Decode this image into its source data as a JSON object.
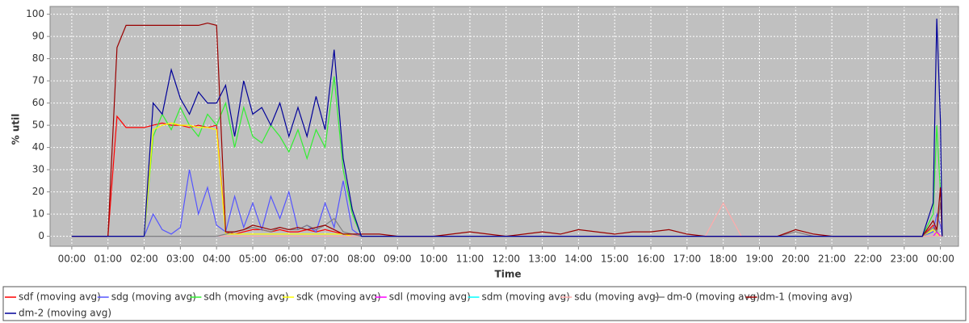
{
  "chart_data": {
    "type": "line",
    "x_label": "Time",
    "y_label": "% util",
    "x": [
      0,
      0.25,
      0.5,
      0.75,
      1,
      1.25,
      1.5,
      1.75,
      2,
      2.25,
      2.5,
      2.75,
      3,
      3.25,
      3.5,
      3.75,
      4,
      4.25,
      4.5,
      4.75,
      5,
      5.25,
      5.5,
      5.75,
      6,
      6.25,
      6.5,
      6.75,
      7,
      7.25,
      7.5,
      7.75,
      8,
      8.5,
      9,
      9.5,
      10,
      10.5,
      11,
      11.5,
      12,
      12.5,
      13,
      13.5,
      14,
      14.5,
      15,
      15.5,
      16,
      16.5,
      17,
      17.5,
      18,
      18.5,
      19,
      19.5,
      20,
      20.5,
      21,
      21.5,
      22,
      22.5,
      23,
      23.5,
      23.8,
      23.9,
      24,
      24.05
    ],
    "xlim": [
      -0.6,
      24.5
    ],
    "xticks": [
      {
        "value": 0,
        "label": "00:00"
      },
      {
        "value": 1,
        "label": "01:00"
      },
      {
        "value": 2,
        "label": "02:00"
      },
      {
        "value": 3,
        "label": "03:00"
      },
      {
        "value": 4,
        "label": "04:00"
      },
      {
        "value": 5,
        "label": "05:00"
      },
      {
        "value": 6,
        "label": "06:00"
      },
      {
        "value": 7,
        "label": "07:00"
      },
      {
        "value": 8,
        "label": "08:00"
      },
      {
        "value": 9,
        "label": "09:00"
      },
      {
        "value": 10,
        "label": "10:00"
      },
      {
        "value": 11,
        "label": "11:00"
      },
      {
        "value": 12,
        "label": "12:00"
      },
      {
        "value": 13,
        "label": "13:00"
      },
      {
        "value": 14,
        "label": "14:00"
      },
      {
        "value": 15,
        "label": "15:00"
      },
      {
        "value": 16,
        "label": "16:00"
      },
      {
        "value": 17,
        "label": "17:00"
      },
      {
        "value": 18,
        "label": "18:00"
      },
      {
        "value": 19,
        "label": "19:00"
      },
      {
        "value": 20,
        "label": "20:00"
      },
      {
        "value": 21,
        "label": "21:00"
      },
      {
        "value": 22,
        "label": "22:00"
      },
      {
        "value": 23,
        "label": "23:00"
      },
      {
        "value": 24,
        "label": "00:00"
      }
    ],
    "ylim": [
      -4.5,
      103.5
    ],
    "yticks": [
      0,
      10,
      20,
      30,
      40,
      50,
      60,
      70,
      80,
      90,
      100
    ],
    "grid": true,
    "legend": "bottom",
    "series": [
      {
        "name": "sdf (moving avg)",
        "color": "#ff0000",
        "values": [
          0,
          0,
          0,
          0,
          0,
          54,
          49,
          49,
          49,
          50,
          51,
          50,
          50,
          49,
          50,
          49,
          50,
          2,
          1,
          2,
          3,
          3,
          2,
          3,
          2,
          2,
          3,
          2,
          3,
          2,
          1,
          0,
          0,
          0,
          0,
          0,
          0,
          0,
          0,
          0,
          0,
          0,
          0,
          0,
          0,
          0,
          0,
          0,
          0,
          0,
          0,
          0,
          0,
          0,
          0,
          0,
          0,
          0,
          0,
          0,
          0,
          0,
          0,
          0,
          5,
          2,
          0,
          0
        ]
      },
      {
        "name": "sdg (moving avg)",
        "color": "#5555ff",
        "values": [
          0,
          0,
          0,
          0,
          0,
          0,
          0,
          0,
          0,
          10,
          3,
          1,
          4,
          30,
          10,
          22,
          5,
          2,
          18,
          4,
          15,
          3,
          18,
          8,
          20,
          3,
          5,
          2,
          15,
          4,
          25,
          3,
          0,
          0,
          0,
          0,
          0,
          0,
          0,
          0,
          0,
          0,
          0,
          0,
          0,
          0,
          0,
          0,
          0,
          0,
          0,
          0,
          0,
          0,
          0,
          0,
          0,
          0,
          0,
          0,
          0,
          0,
          0,
          0,
          2,
          10,
          5,
          0
        ]
      },
      {
        "name": "sdh (moving avg)",
        "color": "#33ee33",
        "values": [
          0,
          0,
          0,
          0,
          0,
          0,
          0,
          0,
          0,
          45,
          55,
          48,
          58,
          50,
          45,
          55,
          50,
          60,
          40,
          58,
          45,
          42,
          50,
          45,
          38,
          48,
          35,
          48,
          40,
          72,
          30,
          10,
          0,
          0,
          0,
          0,
          0,
          0,
          0,
          0,
          0,
          0,
          0,
          0,
          0,
          0,
          0,
          0,
          0,
          0,
          0,
          0,
          0,
          0,
          0,
          0,
          0,
          0,
          0,
          0,
          0,
          0,
          0,
          0,
          10,
          50,
          20,
          0
        ]
      },
      {
        "name": "sdk (moving avg)",
        "color": "#ffff00",
        "values": [
          0,
          0,
          0,
          0,
          0,
          0,
          0,
          0,
          0,
          48,
          50,
          51,
          50,
          50,
          49,
          49,
          48,
          1,
          1,
          1,
          1,
          1,
          1,
          1,
          1,
          1,
          1,
          1,
          1,
          1,
          1,
          0,
          0,
          0,
          0,
          0,
          0,
          0,
          0,
          0,
          0,
          0,
          0,
          0,
          0,
          0,
          0,
          0,
          0,
          0,
          0,
          0,
          0,
          0,
          0,
          0,
          0,
          0,
          0,
          0,
          0,
          0,
          0,
          0,
          3,
          1,
          0,
          0
        ]
      },
      {
        "name": "sdl (moving avg)",
        "color": "#ff00ff",
        "values": [
          0,
          0,
          0,
          0,
          0,
          0,
          0,
          0,
          0,
          0,
          0,
          0,
          0,
          0,
          0,
          0,
          0,
          0,
          0,
          0,
          0,
          0,
          0,
          0,
          0,
          0,
          0,
          0,
          0,
          0,
          0,
          0,
          0,
          0,
          0,
          0,
          0,
          0,
          0,
          0,
          0,
          0,
          0,
          0,
          0,
          0,
          0,
          0,
          0,
          0,
          0,
          0,
          0,
          0,
          0,
          0,
          0,
          0,
          0,
          0,
          0,
          0,
          0,
          0,
          0,
          2,
          0,
          0
        ]
      },
      {
        "name": "sdm (moving avg)",
        "color": "#00ffff",
        "values": [
          0,
          0,
          0,
          0,
          0,
          0,
          0,
          0,
          0,
          0,
          0,
          0,
          0,
          0,
          0,
          0,
          0,
          0,
          0,
          0,
          0,
          0,
          0,
          0,
          0,
          0,
          0,
          0,
          0,
          0,
          0,
          0,
          0,
          0,
          0,
          0,
          0,
          0,
          0,
          0,
          0,
          0,
          0,
          0,
          0,
          0,
          0,
          0,
          0,
          0,
          0,
          0,
          0,
          0,
          0,
          0,
          0,
          0,
          0,
          0,
          0,
          0,
          0,
          0,
          0,
          0,
          0,
          0
        ]
      },
      {
        "name": "sdu (moving avg)",
        "color": "#ffaaaa",
        "values": [
          0,
          0,
          0,
          0,
          0,
          0,
          0,
          0,
          0,
          0,
          0,
          0,
          0,
          0,
          0,
          0,
          0,
          0,
          0,
          0,
          0,
          0,
          0,
          0,
          0,
          0,
          0,
          0,
          0,
          0,
          0,
          0,
          0,
          0,
          0,
          0,
          0,
          0,
          0,
          0,
          0,
          0,
          0,
          0,
          0,
          0,
          0,
          0,
          0,
          0,
          0,
          0,
          15,
          0,
          0,
          0,
          2,
          0,
          0,
          0,
          0,
          0,
          0,
          0,
          0,
          0,
          0,
          0
        ]
      },
      {
        "name": "dm-0 (moving avg)",
        "color": "#808080",
        "values": [
          0,
          0,
          0,
          0,
          0,
          0,
          0,
          0,
          0,
          0,
          0,
          0,
          0,
          0,
          0,
          0,
          0,
          1,
          2,
          3,
          4,
          3,
          2,
          4,
          3,
          3,
          5,
          3,
          5,
          8,
          2,
          1,
          0,
          0,
          0,
          0,
          0,
          0,
          0,
          0,
          0,
          0,
          0,
          0,
          0,
          0,
          0,
          0,
          0,
          0,
          0,
          0,
          0,
          0,
          0,
          0,
          2,
          0,
          0,
          0,
          0,
          0,
          0,
          0,
          4,
          2,
          15,
          0
        ]
      },
      {
        "name": "dm-1 (moving avg)",
        "color": "#990000",
        "values": [
          0,
          0,
          0,
          0,
          0,
          85,
          95,
          95,
          95,
          95,
          95,
          95,
          95,
          95,
          95,
          96,
          95,
          2,
          2,
          3,
          5,
          4,
          3,
          4,
          3,
          4,
          3,
          4,
          5,
          3,
          1,
          1,
          1,
          1,
          0,
          0,
          0,
          1,
          2,
          1,
          0,
          1,
          2,
          1,
          3,
          2,
          1,
          2,
          2,
          3,
          1,
          0,
          0,
          0,
          0,
          0,
          3,
          1,
          0,
          0,
          0,
          0,
          0,
          0,
          7,
          3,
          22,
          0
        ]
      },
      {
        "name": "dm-2 (moving avg)",
        "color": "#000099",
        "values": [
          0,
          0,
          0,
          0,
          0,
          0,
          0,
          0,
          0,
          60,
          55,
          75,
          62,
          55,
          65,
          60,
          60,
          68,
          45,
          70,
          55,
          58,
          50,
          60,
          45,
          58,
          45,
          63,
          48,
          84,
          35,
          12,
          0,
          0,
          0,
          0,
          0,
          0,
          0,
          0,
          0,
          0,
          0,
          0,
          0,
          0,
          0,
          0,
          0,
          0,
          0,
          0,
          0,
          0,
          0,
          0,
          0,
          0,
          0,
          0,
          0,
          0,
          0,
          0,
          15,
          98,
          52,
          0
        ]
      }
    ]
  }
}
